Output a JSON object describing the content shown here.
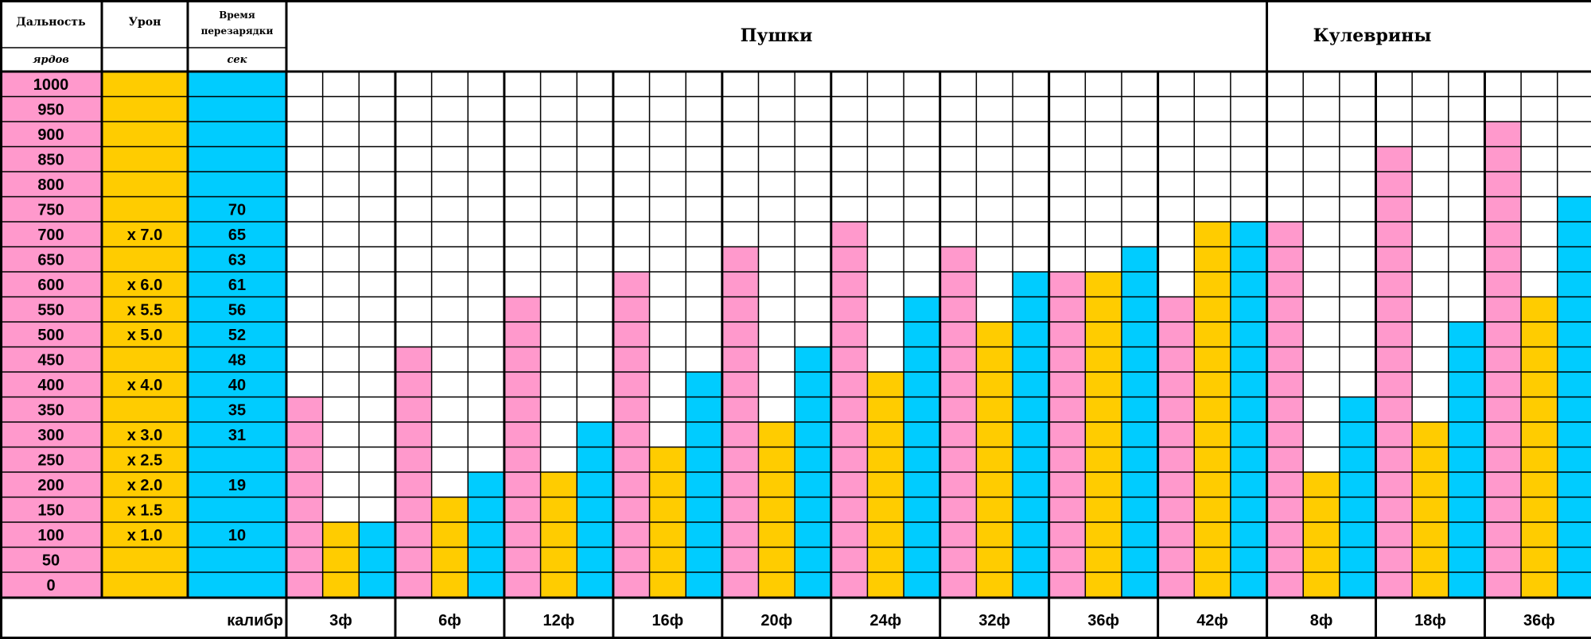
{
  "chart_data": {
    "type": "table",
    "headers": {
      "range": "Дальность",
      "range_unit": "ярдов",
      "damage": "Урон",
      "reload_line1": "Время",
      "reload_line2": "перезарядки",
      "reload_unit": "сек",
      "guns_group": "Пушки",
      "culverins_group": "Кулеврины",
      "caliber_label": "калибр"
    },
    "range_rows": [
      1000,
      950,
      900,
      850,
      800,
      750,
      700,
      650,
      600,
      550,
      500,
      450,
      400,
      350,
      300,
      250,
      200,
      150,
      100,
      50,
      0
    ],
    "damage_by_range": {
      "700": "x 7.0",
      "600": "x 6.0",
      "550": "x 5.5",
      "500": "x 5.0",
      "400": "x 4.0",
      "300": "x 3.0",
      "250": "x 2.5",
      "200": "x 2.0",
      "150": "x 1.5",
      "100": "x 1.0"
    },
    "reload_by_range": {
      "750": "70",
      "700": "65",
      "650": "63",
      "600": "61",
      "550": "56",
      "500": "52",
      "450": "48",
      "400": "40",
      "350": "35",
      "300": "31",
      "200": "19",
      "100": "10"
    },
    "series_colors": {
      "range": "#ff99cc",
      "damage": "#ffcc00",
      "reload": "#00ccff"
    },
    "guns": [
      {
        "caliber": "3ф",
        "range": 350,
        "damage": 100,
        "reload": 100
      },
      {
        "caliber": "6ф",
        "range": 450,
        "damage": 150,
        "reload": 200
      },
      {
        "caliber": "12ф",
        "range": 550,
        "damage": 200,
        "reload": 300
      },
      {
        "caliber": "16ф",
        "range": 600,
        "damage": 250,
        "reload": 400
      },
      {
        "caliber": "20ф",
        "range": 650,
        "damage": 300,
        "reload": 450
      },
      {
        "caliber": "24ф",
        "range": 700,
        "damage": 400,
        "reload": 550
      },
      {
        "caliber": "32ф",
        "range": 650,
        "damage": 500,
        "reload": 600
      },
      {
        "caliber": "36ф",
        "range": 600,
        "damage": 600,
        "reload": 650
      },
      {
        "caliber": "42ф",
        "range": 550,
        "damage": 700,
        "reload": 700
      }
    ],
    "culverins": [
      {
        "caliber": "8ф",
        "range": 700,
        "damage": 200,
        "reload": 350
      },
      {
        "caliber": "18ф",
        "range": 850,
        "damage": 300,
        "reload": 500
      },
      {
        "caliber": "36ф",
        "range": 900,
        "damage": 550,
        "reload": 750
      }
    ]
  }
}
